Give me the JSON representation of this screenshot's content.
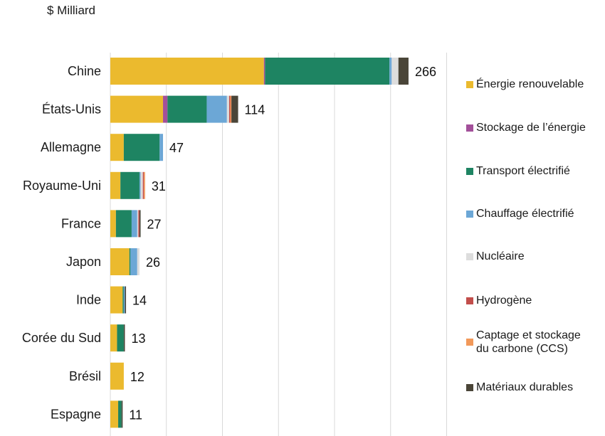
{
  "chart_data": {
    "type": "bar",
    "orientation": "horizontal",
    "stacked": true,
    "ylabel": "$ Milliard",
    "categories": [
      "Chine",
      "États-Unis",
      "Allemagne",
      "Royaume-Uni",
      "France",
      "Japon",
      "Inde",
      "Corée du Sud",
      "Brésil",
      "Espagne"
    ],
    "totals": [
      266,
      114,
      47,
      31,
      27,
      26,
      14,
      13,
      12,
      11
    ],
    "xlim": [
      0,
      300
    ],
    "grid": true,
    "legend_position": "right",
    "series": [
      {
        "name": "Énergie renouvelable",
        "color": "#EBBA2E",
        "values": [
          137,
          47,
          12,
          9,
          5,
          17,
          11,
          6,
          12,
          7
        ]
      },
      {
        "name": "Stockage de l’énergie",
        "color": "#A3509A",
        "values": [
          1,
          4,
          0,
          0,
          0,
          0,
          0,
          0,
          0,
          0
        ]
      },
      {
        "name": "Transport électrifié",
        "color": "#1E8462",
        "values": [
          111,
          35,
          32,
          17,
          14,
          1,
          1,
          6,
          0,
          3
        ]
      },
      {
        "name": "Chauffage électrifié",
        "color": "#6CA7D6",
        "values": [
          2,
          18,
          3,
          1,
          5,
          6,
          1,
          0,
          0,
          0
        ]
      },
      {
        "name": "Nucléaire",
        "color": "#DDDDDD",
        "values": [
          6,
          2,
          0,
          2,
          1,
          2,
          0,
          0,
          0,
          0
        ]
      },
      {
        "name": "Hydrogène",
        "color": "#C24E4B",
        "values": [
          0,
          1,
          0,
          1,
          1,
          0,
          0,
          0,
          0,
          0
        ]
      },
      {
        "name": "Captage et stockage\ndu carbone (CCS)",
        "color": "#F2995A",
        "values": [
          0,
          1,
          0,
          1,
          0,
          0,
          0,
          0,
          0,
          0
        ]
      },
      {
        "name": "Matériaux durables",
        "color": "#4A4538",
        "values": [
          9,
          6,
          0,
          0,
          1,
          0,
          1,
          1,
          0,
          1
        ]
      }
    ]
  }
}
